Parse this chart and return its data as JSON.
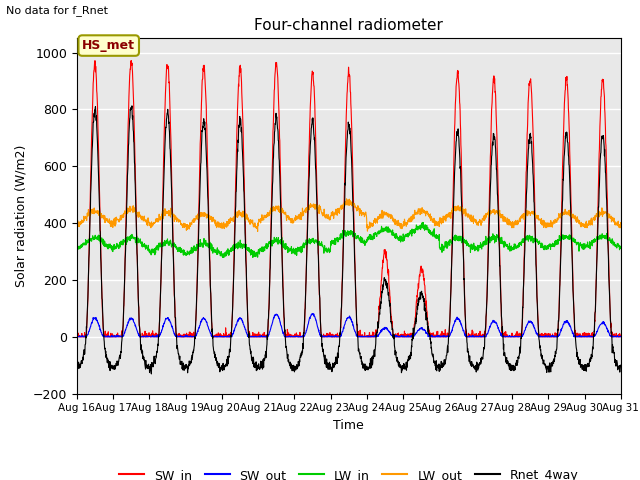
{
  "title": "Four-channel radiometer",
  "ylabel": "Solar radiation (W/m2)",
  "xlabel": "Time",
  "top_left_text": "No data for f_Rnet",
  "station_label": "HS_met",
  "ylim": [
    -200,
    1050
  ],
  "x_tick_labels": [
    "Aug 16",
    "Aug 17",
    "Aug 18",
    "Aug 19",
    "Aug 20",
    "Aug 21",
    "Aug 22",
    "Aug 23",
    "Aug 24",
    "Aug 25",
    "Aug 26",
    "Aug 27",
    "Aug 28",
    "Aug 29",
    "Aug 30",
    "Aug 31"
  ],
  "legend_entries": [
    {
      "label": "SW_in",
      "color": "#ff0000"
    },
    {
      "label": "SW_out",
      "color": "#0000ff"
    },
    {
      "label": "LW_in",
      "color": "#00cc00"
    },
    {
      "label": "LW_out",
      "color": "#ff9900"
    },
    {
      "label": "Rnet_4way",
      "color": "#000000"
    }
  ],
  "background_color": "#e8e8e8",
  "grid_color": "#ffffff",
  "n_days": 15,
  "SW_in_peaks": [
    960,
    970,
    960,
    950,
    945,
    960,
    930,
    930,
    300,
    240,
    930,
    905,
    905,
    910,
    910
  ],
  "SW_out_peaks": [
    65,
    65,
    65,
    65,
    65,
    80,
    80,
    70,
    30,
    30,
    65,
    55,
    55,
    55,
    50
  ],
  "LW_in_bases": [
    330,
    330,
    315,
    310,
    305,
    320,
    320,
    350,
    360,
    370,
    330,
    330,
    330,
    335,
    335
  ],
  "LW_out_bases": [
    420,
    425,
    415,
    410,
    410,
    430,
    440,
    450,
    410,
    420,
    430,
    420,
    415,
    415,
    415
  ],
  "Rnet_peaks": [
    800,
    810,
    790,
    760,
    760,
    770,
    760,
    750,
    200,
    150,
    720,
    710,
    710,
    715,
    715
  ]
}
